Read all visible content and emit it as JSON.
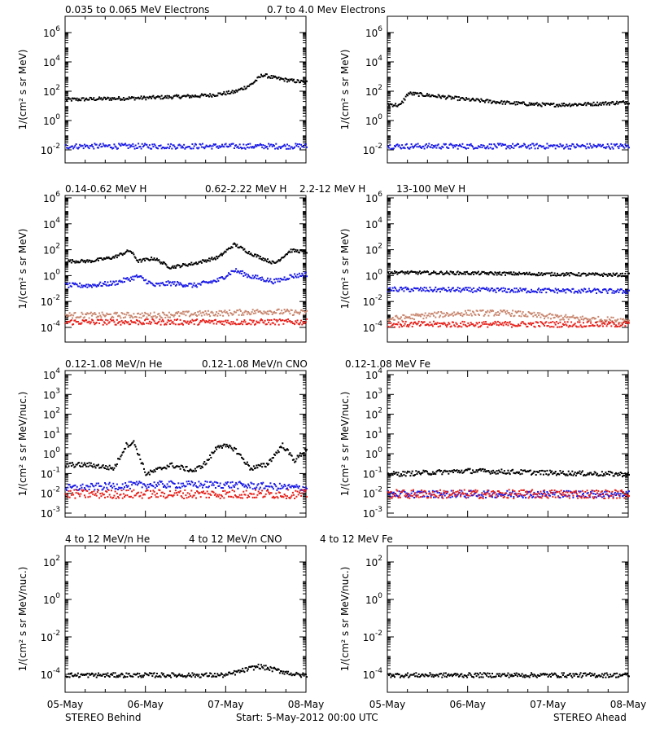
{
  "colors": {
    "black": "#000000",
    "blue": "#1a1ae6",
    "tan": "#c8866e",
    "red": "#e6201a"
  },
  "footer": {
    "left": "STEREO Behind",
    "center": "Start:  5-May-2012 00:00 UTC",
    "right": "STEREO Ahead"
  },
  "x_ticks": [
    "05-May",
    "06-May",
    "07-May",
    "08-May"
  ],
  "rows": [
    {
      "legend": [
        {
          "text": "0.035 to 0.065 MeV Electrons",
          "color": "black"
        },
        {
          "text": "0.7 to 4.0 Mev Electrons",
          "color": "blue"
        }
      ],
      "ylabel": "1/(cm² s sr MeV)",
      "y_ticks": [
        {
          "base": "10",
          "exp": "6"
        },
        {
          "base": "10",
          "exp": "4"
        },
        {
          "base": "10",
          "exp": "2"
        },
        {
          "base": "10",
          "exp": "0"
        },
        {
          "base": "10",
          "exp": "-2"
        }
      ]
    },
    {
      "legend": [
        {
          "text": "0.14-0.62 MeV H",
          "color": "black"
        },
        {
          "text": "0.62-2.22 MeV H",
          "color": "blue"
        },
        {
          "text": "2.2-12 MeV H",
          "color": "tan"
        },
        {
          "text": "13-100 MeV H",
          "color": "red"
        }
      ],
      "ylabel": "1/(cm² s sr MeV)",
      "y_ticks": [
        {
          "base": "10",
          "exp": "6"
        },
        {
          "base": "10",
          "exp": "4"
        },
        {
          "base": "10",
          "exp": "2"
        },
        {
          "base": "10",
          "exp": "0"
        },
        {
          "base": "10",
          "exp": "-2"
        },
        {
          "base": "10",
          "exp": "-4"
        }
      ]
    },
    {
      "legend": [
        {
          "text": "0.12-1.08 MeV/n He",
          "color": "black"
        },
        {
          "text": "0.12-1.08 MeV/n CNO",
          "color": "blue"
        },
        {
          "text": "0.12-1.08 MeV Fe",
          "color": "red"
        }
      ],
      "ylabel": "1/(cm² s sr MeV/nuc.)",
      "y_ticks": [
        {
          "base": "10",
          "exp": "4"
        },
        {
          "base": "10",
          "exp": "3"
        },
        {
          "base": "10",
          "exp": "2"
        },
        {
          "base": "10",
          "exp": "1"
        },
        {
          "base": "10",
          "exp": "0"
        },
        {
          "base": "10",
          "exp": "-1"
        },
        {
          "base": "10",
          "exp": "-2"
        },
        {
          "base": "10",
          "exp": "-3"
        }
      ]
    },
    {
      "legend": [
        {
          "text": "4 to 12 MeV/n He",
          "color": "black"
        },
        {
          "text": "4 to 12 MeV/n CNO",
          "color": "blue"
        },
        {
          "text": "4 to 12 MeV Fe",
          "color": "red"
        }
      ],
      "ylabel": "1/(cm² s sr MeV/nuc.)",
      "y_ticks": [
        {
          "base": "10",
          "exp": "2"
        },
        {
          "base": "10",
          "exp": "0"
        },
        {
          "base": "10",
          "exp": "-2"
        },
        {
          "base": "10",
          "exp": "-4"
        }
      ]
    }
  ],
  "chart_data": [
    {
      "panel": "behind-electrons",
      "type": "scatter",
      "y_scale": "log",
      "ylim": [
        0.001,
        10000000
      ],
      "xlim": [
        0,
        3
      ],
      "series": [
        {
          "name": "0.035 to 0.065 MeV Electrons",
          "color": "black",
          "x": [
            0,
            0.5,
            1.0,
            1.5,
            1.8,
            2.1,
            2.3,
            2.45,
            2.6,
            2.8,
            3.0
          ],
          "y": [
            30,
            35,
            40,
            50,
            60,
            100,
            300,
            1500,
            900,
            600,
            450
          ]
        },
        {
          "name": "0.7 to 4.0 Mev Electrons",
          "color": "blue",
          "x": [
            0,
            1.0,
            2.0,
            3.0
          ],
          "y": [
            0.02,
            0.02,
            0.02,
            0.02
          ]
        }
      ]
    },
    {
      "panel": "ahead-electrons",
      "type": "scatter",
      "y_scale": "log",
      "ylim": [
        0.001,
        10000000
      ],
      "xlim": [
        0,
        3
      ],
      "series": [
        {
          "name": "0.035 to 0.065 MeV Electrons",
          "color": "black",
          "x": [
            0,
            0.15,
            0.25,
            0.5,
            1.0,
            1.5,
            2.0,
            2.5,
            3.0
          ],
          "y": [
            15,
            12,
            80,
            60,
            30,
            18,
            13,
            15,
            20
          ]
        },
        {
          "name": "0.7 to 4.0 Mev Electrons",
          "color": "blue",
          "x": [
            0,
            1.0,
            2.0,
            3.0
          ],
          "y": [
            0.02,
            0.02,
            0.02,
            0.02
          ]
        }
      ]
    },
    {
      "panel": "behind-protons",
      "type": "scatter",
      "y_scale": "log",
      "ylim": [
        2e-05,
        2000000
      ],
      "xlim": [
        0,
        3
      ],
      "series": [
        {
          "name": "0.14-0.62 MeV H",
          "color": "black",
          "x": [
            0,
            0.3,
            0.6,
            0.8,
            0.9,
            1.1,
            1.3,
            1.6,
            1.9,
            2.1,
            2.3,
            2.6,
            2.8,
            3.0
          ],
          "y": [
            15,
            15,
            30,
            100,
            15,
            25,
            5,
            10,
            30,
            300,
            60,
            10,
            100,
            80
          ]
        },
        {
          "name": "0.62-2.22 MeV H",
          "color": "blue",
          "x": [
            0,
            0.3,
            0.6,
            0.9,
            1.1,
            1.3,
            1.6,
            1.9,
            2.1,
            2.3,
            2.6,
            2.8,
            3.0
          ],
          "y": [
            0.2,
            0.2,
            0.3,
            1.0,
            0.2,
            0.3,
            0.2,
            0.5,
            3.0,
            1.0,
            0.4,
            1.0,
            1.5
          ]
        },
        {
          "name": "2.2-12 MeV H",
          "color": "tan",
          "x": [
            0,
            1.0,
            2.0,
            2.5,
            3.0
          ],
          "y": [
            0.001,
            0.001,
            0.0015,
            0.002,
            0.0015
          ]
        },
        {
          "name": "13-100 MeV H",
          "color": "red",
          "x": [
            0,
            1.0,
            2.0,
            3.0
          ],
          "y": [
            0.0003,
            0.0003,
            0.0003,
            0.0003
          ]
        }
      ]
    },
    {
      "panel": "ahead-protons",
      "type": "scatter",
      "y_scale": "log",
      "ylim": [
        2e-05,
        2000000
      ],
      "xlim": [
        0,
        3
      ],
      "series": [
        {
          "name": "0.14-0.62 MeV H",
          "color": "black",
          "x": [
            0,
            1.0,
            2.0,
            3.0
          ],
          "y": [
            2.0,
            1.8,
            1.5,
            1.3
          ]
        },
        {
          "name": "0.62-2.22 MeV H",
          "color": "blue",
          "x": [
            0,
            1.0,
            2.0,
            3.0
          ],
          "y": [
            0.1,
            0.09,
            0.08,
            0.07
          ]
        },
        {
          "name": "2.2-12 MeV H",
          "color": "tan",
          "x": [
            0,
            0.5,
            1.0,
            1.5,
            2.0,
            2.5,
            3.0
          ],
          "y": [
            0.0005,
            0.001,
            0.0015,
            0.0015,
            0.0008,
            0.0005,
            0.0004
          ]
        },
        {
          "name": "13-100 MeV H",
          "color": "red",
          "x": [
            0,
            1.0,
            2.0,
            3.0
          ],
          "y": [
            0.0002,
            0.0002,
            0.0002,
            0.0002
          ]
        }
      ]
    },
    {
      "panel": "behind-low-energy-ions",
      "type": "scatter",
      "y_scale": "log",
      "ylim": [
        0.001,
        10000
      ],
      "xlim": [
        0,
        3
      ],
      "series": [
        {
          "name": "0.12-1.08 MeV/n He",
          "color": "black",
          "x": [
            0,
            0.3,
            0.6,
            0.75,
            0.85,
            1.0,
            1.3,
            1.6,
            1.75,
            1.9,
            2.1,
            2.3,
            2.5,
            2.7,
            2.85,
            3.0
          ],
          "y": [
            0.3,
            0.3,
            0.2,
            3.0,
            4.0,
            0.1,
            0.3,
            0.15,
            0.4,
            3.0,
            2.0,
            0.2,
            0.3,
            3.0,
            0.5,
            2.0
          ]
        },
        {
          "name": "0.12-1.08 MeV/n CNO",
          "color": "blue",
          "x": [
            0,
            1.0,
            2.0,
            3.0
          ],
          "y": [
            0.02,
            0.03,
            0.03,
            0.02
          ]
        },
        {
          "name": "0.12-1.08 MeV Fe",
          "color": "red",
          "x": [
            0,
            1.0,
            2.0,
            3.0
          ],
          "y": [
            0.01,
            0.01,
            0.01,
            0.01
          ]
        }
      ]
    },
    {
      "panel": "ahead-low-energy-ions",
      "type": "scatter",
      "y_scale": "log",
      "ylim": [
        0.001,
        10000
      ],
      "xlim": [
        0,
        3
      ],
      "series": [
        {
          "name": "0.12-1.08 MeV/n He",
          "color": "black",
          "x": [
            0,
            1.0,
            2.0,
            3.0
          ],
          "y": [
            0.1,
            0.15,
            0.12,
            0.1
          ]
        },
        {
          "name": "0.12-1.08 MeV/n CNO",
          "color": "blue",
          "x": [
            0,
            1.0,
            2.0,
            3.0
          ],
          "y": [
            0.01,
            0.01,
            0.01,
            0.01
          ]
        },
        {
          "name": "0.12-1.08 MeV Fe",
          "color": "red",
          "x": [
            0,
            1.0,
            2.0,
            3.0
          ],
          "y": [
            0.01,
            0.01,
            0.01,
            0.01
          ]
        }
      ]
    },
    {
      "panel": "behind-high-energy-ions",
      "type": "scatter",
      "y_scale": "log",
      "ylim": [
        3e-06,
        3000
      ],
      "xlim": [
        0,
        3
      ],
      "series": [
        {
          "name": "4 to 12 MeV/n He",
          "color": "black",
          "x": [
            0.1,
            1.0,
            2.0,
            2.4,
            2.9
          ],
          "y": [
            0.0001,
            0.0001,
            0.0001,
            0.0003,
            0.0001
          ]
        }
      ]
    },
    {
      "panel": "ahead-high-energy-ions",
      "type": "scatter",
      "y_scale": "log",
      "ylim": [
        3e-06,
        3000
      ],
      "xlim": [
        0,
        3
      ],
      "series": [
        {
          "name": "4 to 12 MeV/n He",
          "color": "black",
          "x": [
            0.1,
            1.0,
            2.0,
            2.9
          ],
          "y": [
            0.0001,
            0.0001,
            0.0001,
            0.0001
          ]
        }
      ]
    }
  ]
}
